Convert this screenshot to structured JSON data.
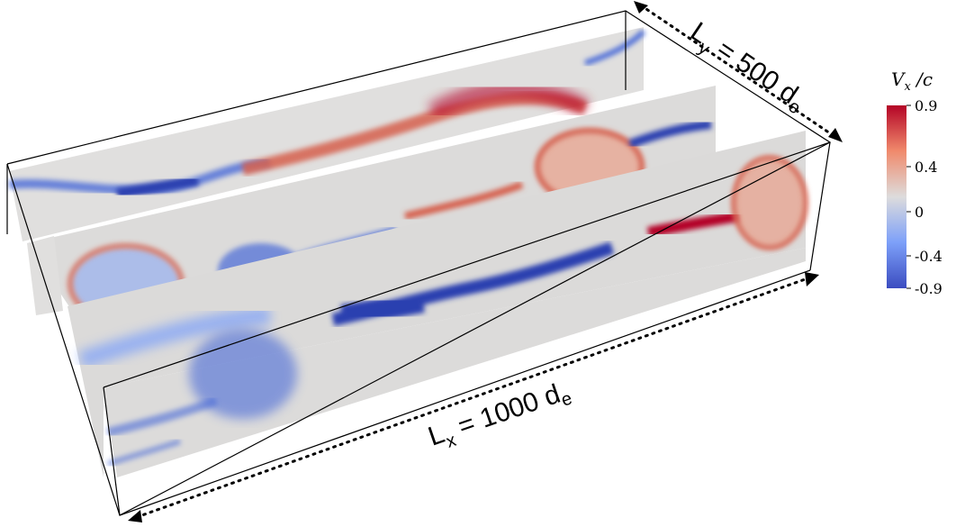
{
  "figure": {
    "ly_label": "L",
    "ly_sub": "y",
    "ly_rest": " = 500 d",
    "ly_sub2": "e",
    "lx_label": "L",
    "lx_sub": "x",
    "lx_rest": " = 1000 d",
    "lx_sub2": "e"
  },
  "colorbar": {
    "title": "V",
    "title_sub": "x",
    "title_rest": " /c",
    "ticks": [
      "0.9",
      "0.4",
      "0",
      "-0.4",
      "-0.9"
    ],
    "colors": {
      "max": "#b40426",
      "mid_pos": "#f08a6c",
      "zero": "#dddcdc",
      "mid_neg": "#7da0f9",
      "min": "#3b4cc0"
    }
  },
  "colors": {
    "frame": "#000000",
    "panel_bg": "#dcdcdc",
    "red": "#d6604d",
    "deep_red": "#b40426",
    "blue": "#4a6ad8",
    "deep_blue": "#2c3fb0"
  }
}
